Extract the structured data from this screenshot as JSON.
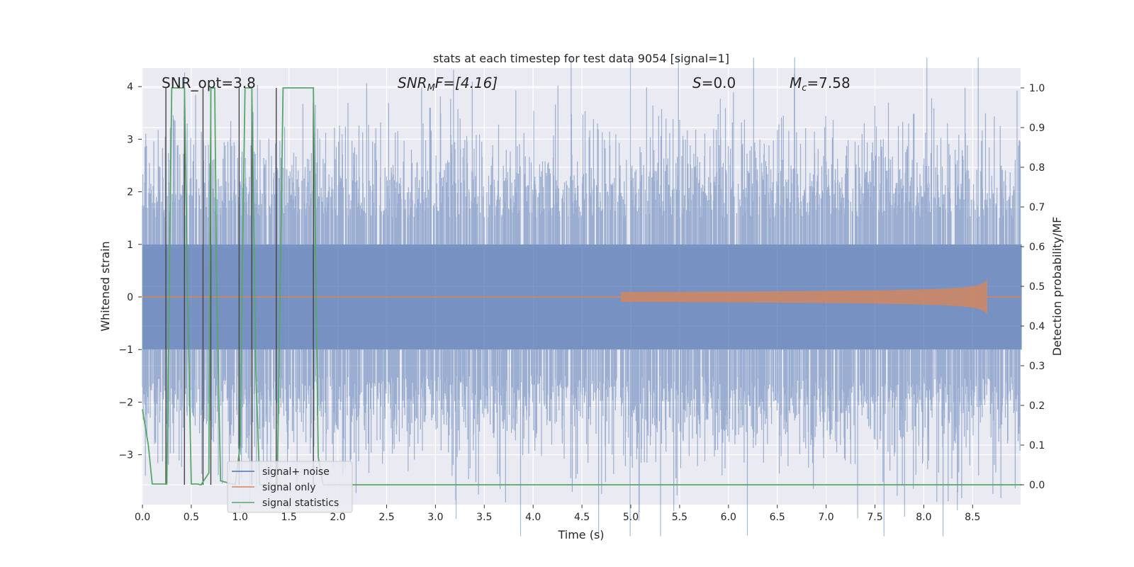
{
  "chart_data": {
    "type": "line",
    "title": "stats at each timestep for test data 9054 [signal=1]",
    "xlabel": "Time (s)",
    "ylabel_left": "Whitened strain",
    "ylabel_right": "Detection probability/MF",
    "xlim": [
      0.0,
      9.0
    ],
    "ylim_left": [
      -3.9,
      4.35
    ],
    "ylim_right": [
      -0.05,
      1.04
    ],
    "x_ticks": [
      "0.0",
      "0.5",
      "1.0",
      "1.5",
      "2.0",
      "2.5",
      "3.0",
      "3.5",
      "4.0",
      "4.5",
      "5.0",
      "5.5",
      "6.0",
      "6.5",
      "7.0",
      "7.5",
      "8.0",
      "8.5"
    ],
    "y_ticks_left": [
      "−3",
      "−2",
      "−1",
      "0",
      "1",
      "2",
      "3",
      "4"
    ],
    "y_ticks_right": [
      "0.0",
      "0.1",
      "0.2",
      "0.3",
      "0.4",
      "0.5",
      "0.6",
      "0.7",
      "0.8",
      "0.9",
      "1.0"
    ],
    "grid": true,
    "legend_placement": "lower-left",
    "colors": {
      "background": "#eaeaf2",
      "grid": "#ffffff",
      "noise": "#4c72b0",
      "signal": "#dd8452",
      "stats": "#55a868",
      "markers": "#444444"
    },
    "annotations": {
      "snr_opt": "SNR_opt=3.8",
      "snr_mf_main": "SNR",
      "snr_mf_sub": "M",
      "snr_mf_rest": "F=[4.16]",
      "s_main": "S",
      "s_rest": "=0.0",
      "mc_main": "M",
      "mc_sub": "c",
      "mc_rest": "=7.58"
    },
    "series": [
      {
        "name": "signal+ noise",
        "axis": "left",
        "description_kind": "whitened noise, roughly unit variance",
        "envelope": [
          -3.6,
          3.6
        ]
      },
      {
        "name": "signal only",
        "axis": "left",
        "description_kind": "chirp",
        "merger_time": 8.65,
        "peak_amplitude": 0.35
      },
      {
        "name": "signal statistics",
        "axis": "right",
        "x": [
          0.0,
          0.06,
          0.1,
          0.25,
          0.3,
          0.43,
          0.46,
          0.5,
          0.56,
          0.6,
          0.68,
          0.7,
          0.74,
          0.76,
          0.8,
          0.95,
          1.0,
          1.02,
          1.05,
          1.12,
          1.16,
          1.2,
          1.38,
          1.44,
          1.75,
          1.8,
          1.85,
          2.0,
          9.0
        ],
        "y": [
          0.19,
          0.1,
          0.002,
          0.002,
          1.0,
          1.0,
          0.5,
          0.002,
          0.002,
          0.0,
          0.03,
          1.0,
          1.0,
          0.5,
          0.01,
          0.0,
          0.1,
          0.5,
          1.0,
          1.0,
          0.3,
          0.0,
          0.0,
          1.0,
          1.0,
          0.07,
          0.0,
          0.0,
          0.0
        ]
      }
    ],
    "vertical_markers": [
      0.24,
      0.43,
      0.62,
      0.7,
      0.99,
      1.12,
      1.37,
      1.75
    ]
  }
}
